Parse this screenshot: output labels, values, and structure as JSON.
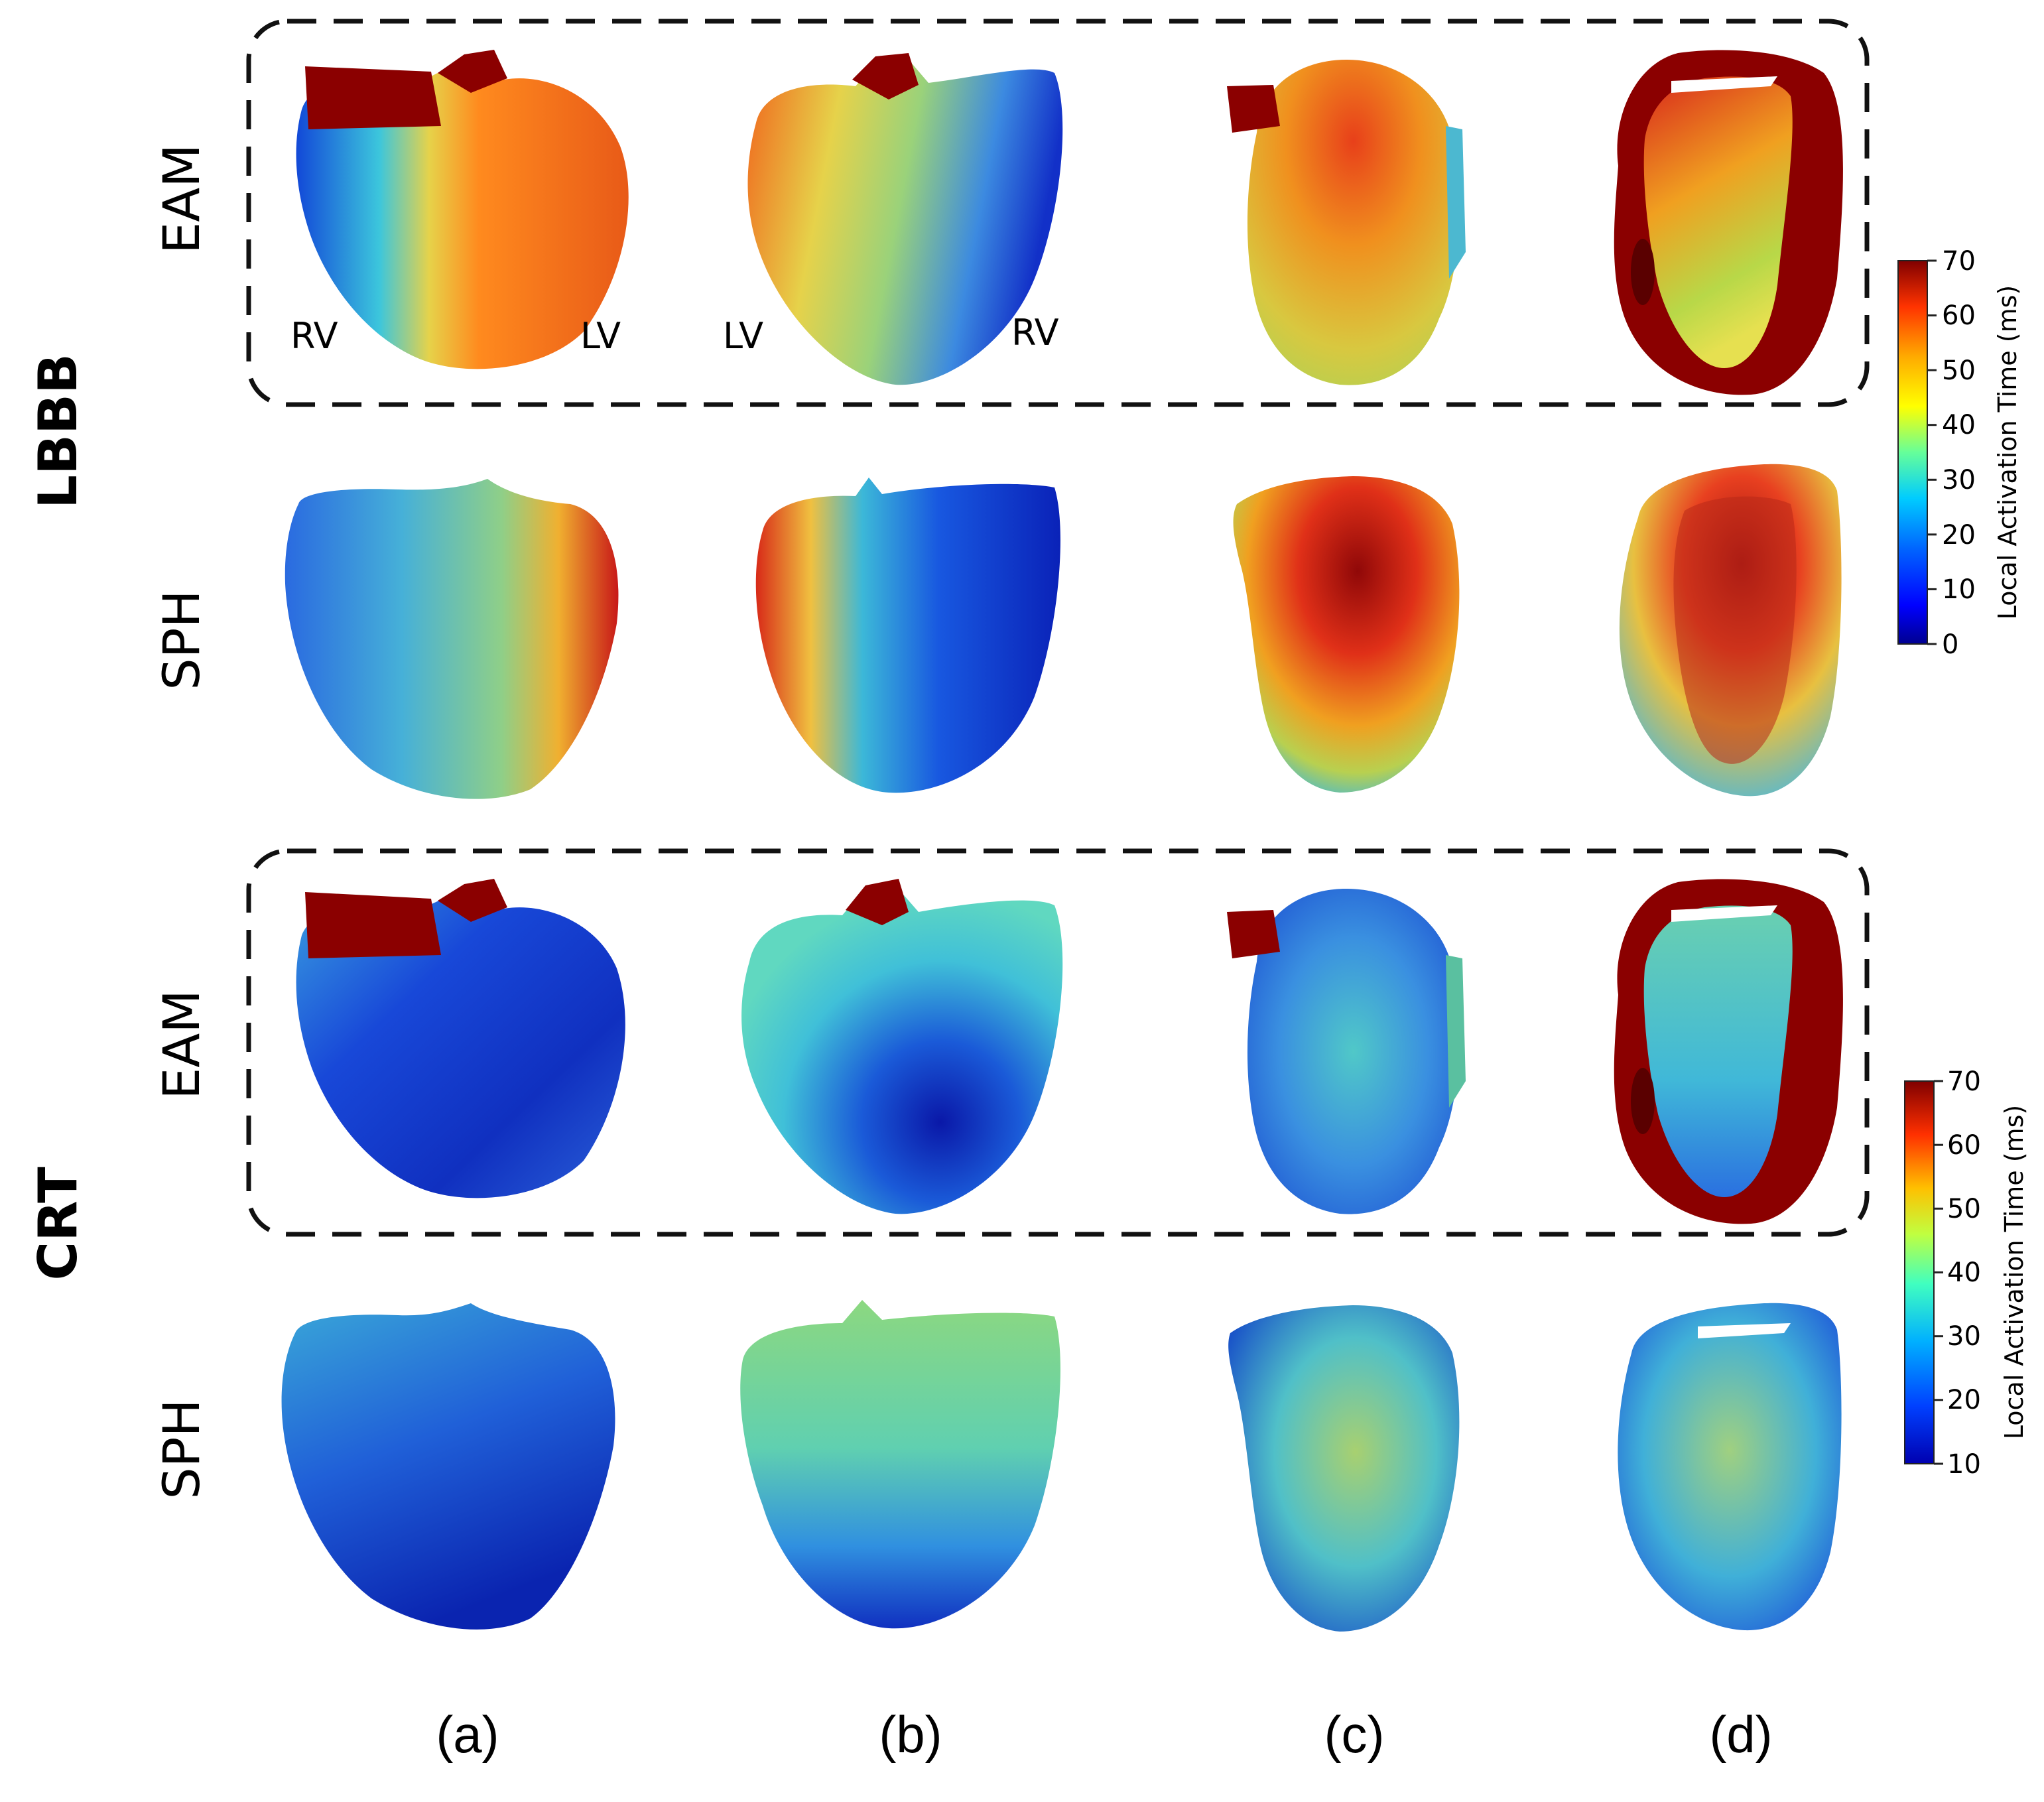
{
  "colors": {
    "jet": [
      "#00008f",
      "#0000ff",
      "#0066ff",
      "#00ccff",
      "#33ffcc",
      "#99ff66",
      "#ffff00",
      "#ffaa00",
      "#ff4400",
      "#cc0000",
      "#800000"
    ],
    "maroon": "#8b0000",
    "blue": "#0a2fcc",
    "cyan": "#3cc6dc",
    "green": "#8fd070",
    "yellow": "#e6d24a",
    "orange": "#ff8a1e",
    "red": "#d8261c"
  },
  "figure": {
    "groups": [
      {
        "label": "LBBB",
        "rows": [
          {
            "label": "EAM",
            "highlighted": true
          },
          {
            "label": "SPH",
            "highlighted": false
          }
        ]
      },
      {
        "label": "CRT",
        "rows": [
          {
            "label": "EAM",
            "highlighted": true
          },
          {
            "label": "SPH",
            "highlighted": false
          }
        ]
      }
    ],
    "columns": [
      "(a)",
      "(b)",
      "(c)",
      "(d)"
    ],
    "chamber_labels": {
      "a_left": "RV",
      "a_right": "LV",
      "b_left": "LV",
      "b_right": "RV"
    },
    "colorbars": [
      {
        "title": "Local Activation Time (ms)",
        "min": 0,
        "max": 70,
        "ticks": [
          "0",
          "10",
          "20",
          "30",
          "40",
          "50",
          "60",
          "70"
        ]
      },
      {
        "title": "Local Activation Time (ms)",
        "min": 10,
        "max": 70,
        "ticks": [
          "10",
          "20",
          "30",
          "40",
          "50",
          "60",
          "70"
        ]
      }
    ]
  }
}
